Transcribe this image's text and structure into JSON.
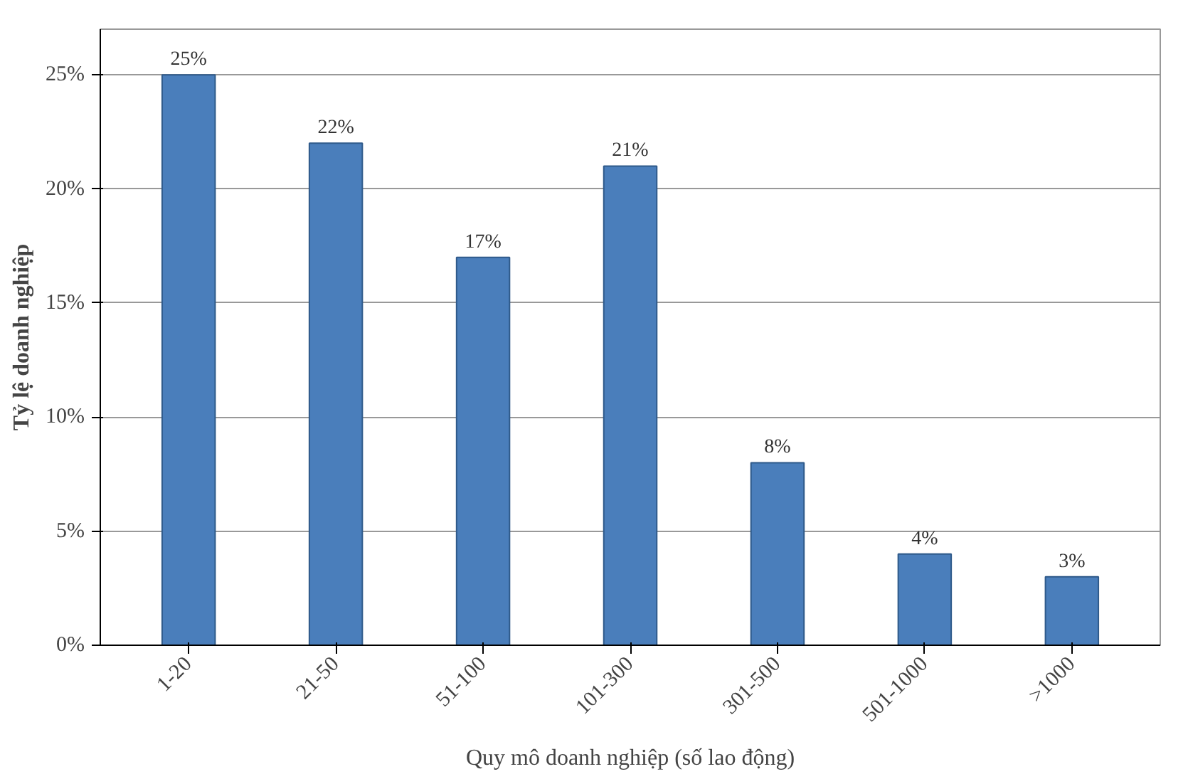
{
  "chart_data": {
    "type": "bar",
    "xlabel": "Quy mô doanh nghiệp (số lao động)",
    "ylabel": "Tỷ lệ doanh nghiệp",
    "categories": [
      "1-20",
      "21-50",
      "51-100",
      "101-300",
      "301-500",
      "501-1000",
      ">1000"
    ],
    "values": [
      25,
      22,
      17,
      21,
      8,
      4,
      3
    ],
    "value_labels": [
      "25%",
      "22%",
      "17%",
      "21%",
      "8%",
      "4%",
      "3%"
    ],
    "color": "#4a7ebb",
    "ylim": [
      0,
      27
    ],
    "yticks": [
      {
        "value": 0,
        "label": "0%"
      },
      {
        "value": 5,
        "label": "5%"
      },
      {
        "value": 10,
        "label": "10%"
      },
      {
        "value": 15,
        "label": "15%"
      },
      {
        "value": 20,
        "label": "20%"
      },
      {
        "value": 25,
        "label": "25%"
      }
    ],
    "grid": "y"
  }
}
